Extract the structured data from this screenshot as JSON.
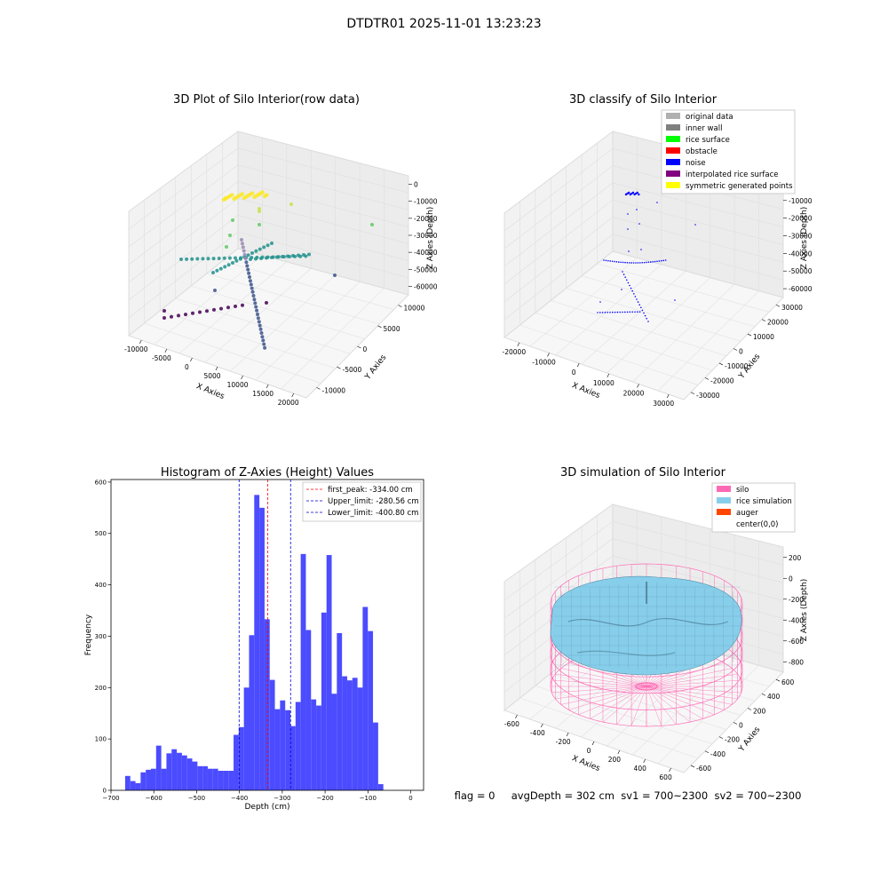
{
  "figure": {
    "suptitle": "DTDTR01 2025-11-01 13:23:23",
    "footer": "flag = 0     avgDepth = 302 cm  sv1 = 700~2300  sv2 = 700~2300"
  },
  "colors": {
    "hist_bar": "#4b4bff",
    "first_peak_line": "#ff0000",
    "limit_line": "#0000cc",
    "silo": "#ff69b4",
    "rice": "#87ceeb",
    "auger": "#ff4500",
    "raw_cmap": [
      "#440154",
      "#3b528b",
      "#21918c",
      "#5ec962",
      "#fde725"
    ],
    "classify_points": "#0000ff"
  },
  "chart_data": [
    {
      "type": "scatter",
      "projection": "3d",
      "title": "3D Plot of Silo Interior(row data)",
      "xlabel": "X Axies",
      "ylabel": "Y Axies",
      "zlabel": "Z Axies (Depth)",
      "xticks": [
        "-10000",
        "-5000",
        "0",
        "5000",
        "10000",
        "15000",
        "20000"
      ],
      "yticks": [
        "-10000",
        "-5000",
        "0",
        "5000",
        "10000"
      ],
      "zticks": [
        "0",
        "-10000",
        "-20000",
        "-30000",
        "-40000",
        "-50000",
        "-60000"
      ],
      "xlim": [
        -12000,
        21000
      ],
      "ylim": [
        -12000,
        12000
      ],
      "zlim": [
        -65000,
        2000
      ],
      "grid": true
    },
    {
      "type": "scatter",
      "projection": "3d",
      "title": "3D classify of Silo Interior",
      "xlabel": "X Axies",
      "ylabel": "Y Axies",
      "zlabel": "Z Axies (Depth)",
      "xticks": [
        "-20000",
        "-10000",
        "0",
        "10000",
        "20000",
        "30000"
      ],
      "yticks": [
        "-30000",
        "-20000",
        "-10000",
        "0",
        "10000",
        "20000",
        "30000"
      ],
      "zticks": [
        "0",
        "-10000",
        "-20000",
        "-30000",
        "-40000",
        "-50000",
        "-60000"
      ],
      "legend": {
        "placement": "top-right",
        "entries": [
          {
            "label": "original data",
            "color": "#b0b0b0"
          },
          {
            "label": "inner wall",
            "color": "#808080"
          },
          {
            "label": "rice surface",
            "color": "#00ff00"
          },
          {
            "label": "obstacle",
            "color": "#ff0000"
          },
          {
            "label": "noise",
            "color": "#0000ff"
          },
          {
            "label": "interpolated rice surface",
            "color": "#800080"
          },
          {
            "label": "symmetric generated points",
            "color": "#ffff00"
          }
        ]
      },
      "grid": true
    },
    {
      "type": "bar",
      "title": "Histogram of Z-Axies (Height) Values",
      "xlabel": "Depth (cm)",
      "ylabel": "Frequency",
      "xlim": [
        -700,
        30
      ],
      "ylim": [
        0,
        605
      ],
      "xticks": [
        -700,
        -600,
        -500,
        -400,
        -300,
        -200,
        -100,
        0
      ],
      "yticks": [
        0,
        100,
        200,
        300,
        400,
        500,
        600
      ],
      "bin_start": -667,
      "bin_width": 12.06,
      "values": [
        28,
        18,
        14,
        35,
        40,
        42,
        87,
        42,
        72,
        80,
        73,
        68,
        62,
        56,
        47,
        47,
        42,
        42,
        38,
        38,
        38,
        108,
        123,
        200,
        302,
        575,
        550,
        333,
        215,
        158,
        175,
        156,
        125,
        172,
        460,
        312,
        177,
        165,
        346,
        458,
        188,
        306,
        222,
        214,
        219,
        200,
        357,
        310,
        132,
        12
      ],
      "lines": [
        {
          "label": "first_peak: -334.00 cm",
          "x": -334.0,
          "color": "#ff0000"
        },
        {
          "label": "Upper_limit: -280.56 cm",
          "x": -280.56,
          "color": "#0000cc"
        },
        {
          "label": "Lower_limit: -400.80 cm",
          "x": -400.8,
          "color": "#0000cc"
        }
      ],
      "legend": {
        "placement": "top-right"
      },
      "grid": false
    },
    {
      "type": "surface",
      "projection": "3d",
      "title": "3D simulation of Silo Interior",
      "xlabel": "X Axies",
      "ylabel": "Y Axies",
      "zlabel": "Z Axies (Depth)",
      "xticks": [
        "-600",
        "-400",
        "-200",
        "0",
        "200",
        "400",
        "600"
      ],
      "yticks": [
        "-600",
        "-400",
        "-200",
        "0",
        "200",
        "400",
        "600"
      ],
      "zticks": [
        "200",
        "0",
        "-200",
        "-400",
        "-600",
        "-800"
      ],
      "legend": {
        "placement": "top-right",
        "entries": [
          {
            "label": "silo",
            "color": "#ff69b4"
          },
          {
            "label": "rice simulation",
            "color": "#87ceeb"
          },
          {
            "label": "auger",
            "color": "#ff4500"
          },
          {
            "label": "center(0,0)",
            "color": "none"
          }
        ]
      },
      "grid": true
    }
  ]
}
